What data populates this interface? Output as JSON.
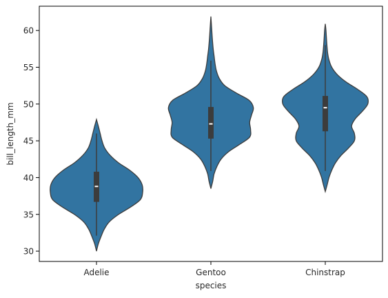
{
  "chart_data": {
    "type": "violin",
    "xlabel": "species",
    "ylabel": "bill_length_mm",
    "categories": [
      "Adelie",
      "Gentoo",
      "Chinstrap"
    ],
    "ylim": [
      28.6,
      63.3
    ],
    "yticks": [
      30,
      35,
      40,
      45,
      50,
      55,
      60
    ],
    "ytick_labels": [
      "30",
      "35",
      "40",
      "45",
      "50",
      "55",
      "60"
    ],
    "grid": false,
    "fill_color": "#3274a1",
    "edge_color": "#3c3c3c",
    "box_color": "#3c3c3c",
    "median_color": "#ffffff",
    "violins": [
      {
        "name": "Adelie",
        "q1": 36.7,
        "median": 38.8,
        "q3": 40.8,
        "whisker_low": 32.1,
        "whisker_high": 46.0,
        "profile": [
          [
            30.0,
            0.0
          ],
          [
            31.0,
            0.04
          ],
          [
            32.0,
            0.1
          ],
          [
            33.0,
            0.17
          ],
          [
            34.0,
            0.28
          ],
          [
            35.0,
            0.48
          ],
          [
            36.0,
            0.74
          ],
          [
            37.0,
            0.95
          ],
          [
            38.0,
            1.0
          ],
          [
            39.0,
            0.99
          ],
          [
            40.0,
            0.9
          ],
          [
            41.0,
            0.72
          ],
          [
            42.0,
            0.48
          ],
          [
            43.0,
            0.3
          ],
          [
            44.0,
            0.18
          ],
          [
            45.0,
            0.12
          ],
          [
            46.0,
            0.08
          ],
          [
            47.0,
            0.04
          ],
          [
            47.9,
            0.0
          ]
        ]
      },
      {
        "name": "Gentoo",
        "q1": 45.3,
        "median": 47.3,
        "q3": 49.6,
        "whisker_low": 40.9,
        "whisker_high": 55.9,
        "profile": [
          [
            38.5,
            0.0
          ],
          [
            39.5,
            0.04
          ],
          [
            40.5,
            0.07
          ],
          [
            41.5,
            0.13
          ],
          [
            42.5,
            0.22
          ],
          [
            43.5,
            0.38
          ],
          [
            44.5,
            0.62
          ],
          [
            45.5,
            0.84
          ],
          [
            46.5,
            0.86
          ],
          [
            47.5,
            0.84
          ],
          [
            48.5,
            0.88
          ],
          [
            49.5,
            0.92
          ],
          [
            50.5,
            0.83
          ],
          [
            51.5,
            0.55
          ],
          [
            52.5,
            0.3
          ],
          [
            53.5,
            0.18
          ],
          [
            54.5,
            0.12
          ],
          [
            55.5,
            0.09
          ],
          [
            56.5,
            0.07
          ],
          [
            57.5,
            0.05
          ],
          [
            59.0,
            0.03
          ],
          [
            60.5,
            0.015
          ],
          [
            61.9,
            0.0
          ]
        ]
      },
      {
        "name": "Chinstrap",
        "q1": 46.3,
        "median": 49.5,
        "q3": 51.1,
        "whisker_low": 40.9,
        "whisker_high": 58.0,
        "profile": [
          [
            38.1,
            0.0
          ],
          [
            39.0,
            0.04
          ],
          [
            40.0,
            0.08
          ],
          [
            41.0,
            0.14
          ],
          [
            42.0,
            0.22
          ],
          [
            43.0,
            0.34
          ],
          [
            44.0,
            0.5
          ],
          [
            45.0,
            0.63
          ],
          [
            46.0,
            0.63
          ],
          [
            47.0,
            0.57
          ],
          [
            48.0,
            0.65
          ],
          [
            49.0,
            0.8
          ],
          [
            50.0,
            0.92
          ],
          [
            51.0,
            0.9
          ],
          [
            52.0,
            0.7
          ],
          [
            53.0,
            0.45
          ],
          [
            54.0,
            0.26
          ],
          [
            55.0,
            0.14
          ],
          [
            56.0,
            0.08
          ],
          [
            57.0,
            0.05
          ],
          [
            58.5,
            0.03
          ],
          [
            60.0,
            0.015
          ],
          [
            60.9,
            0.0
          ]
        ]
      }
    ]
  }
}
